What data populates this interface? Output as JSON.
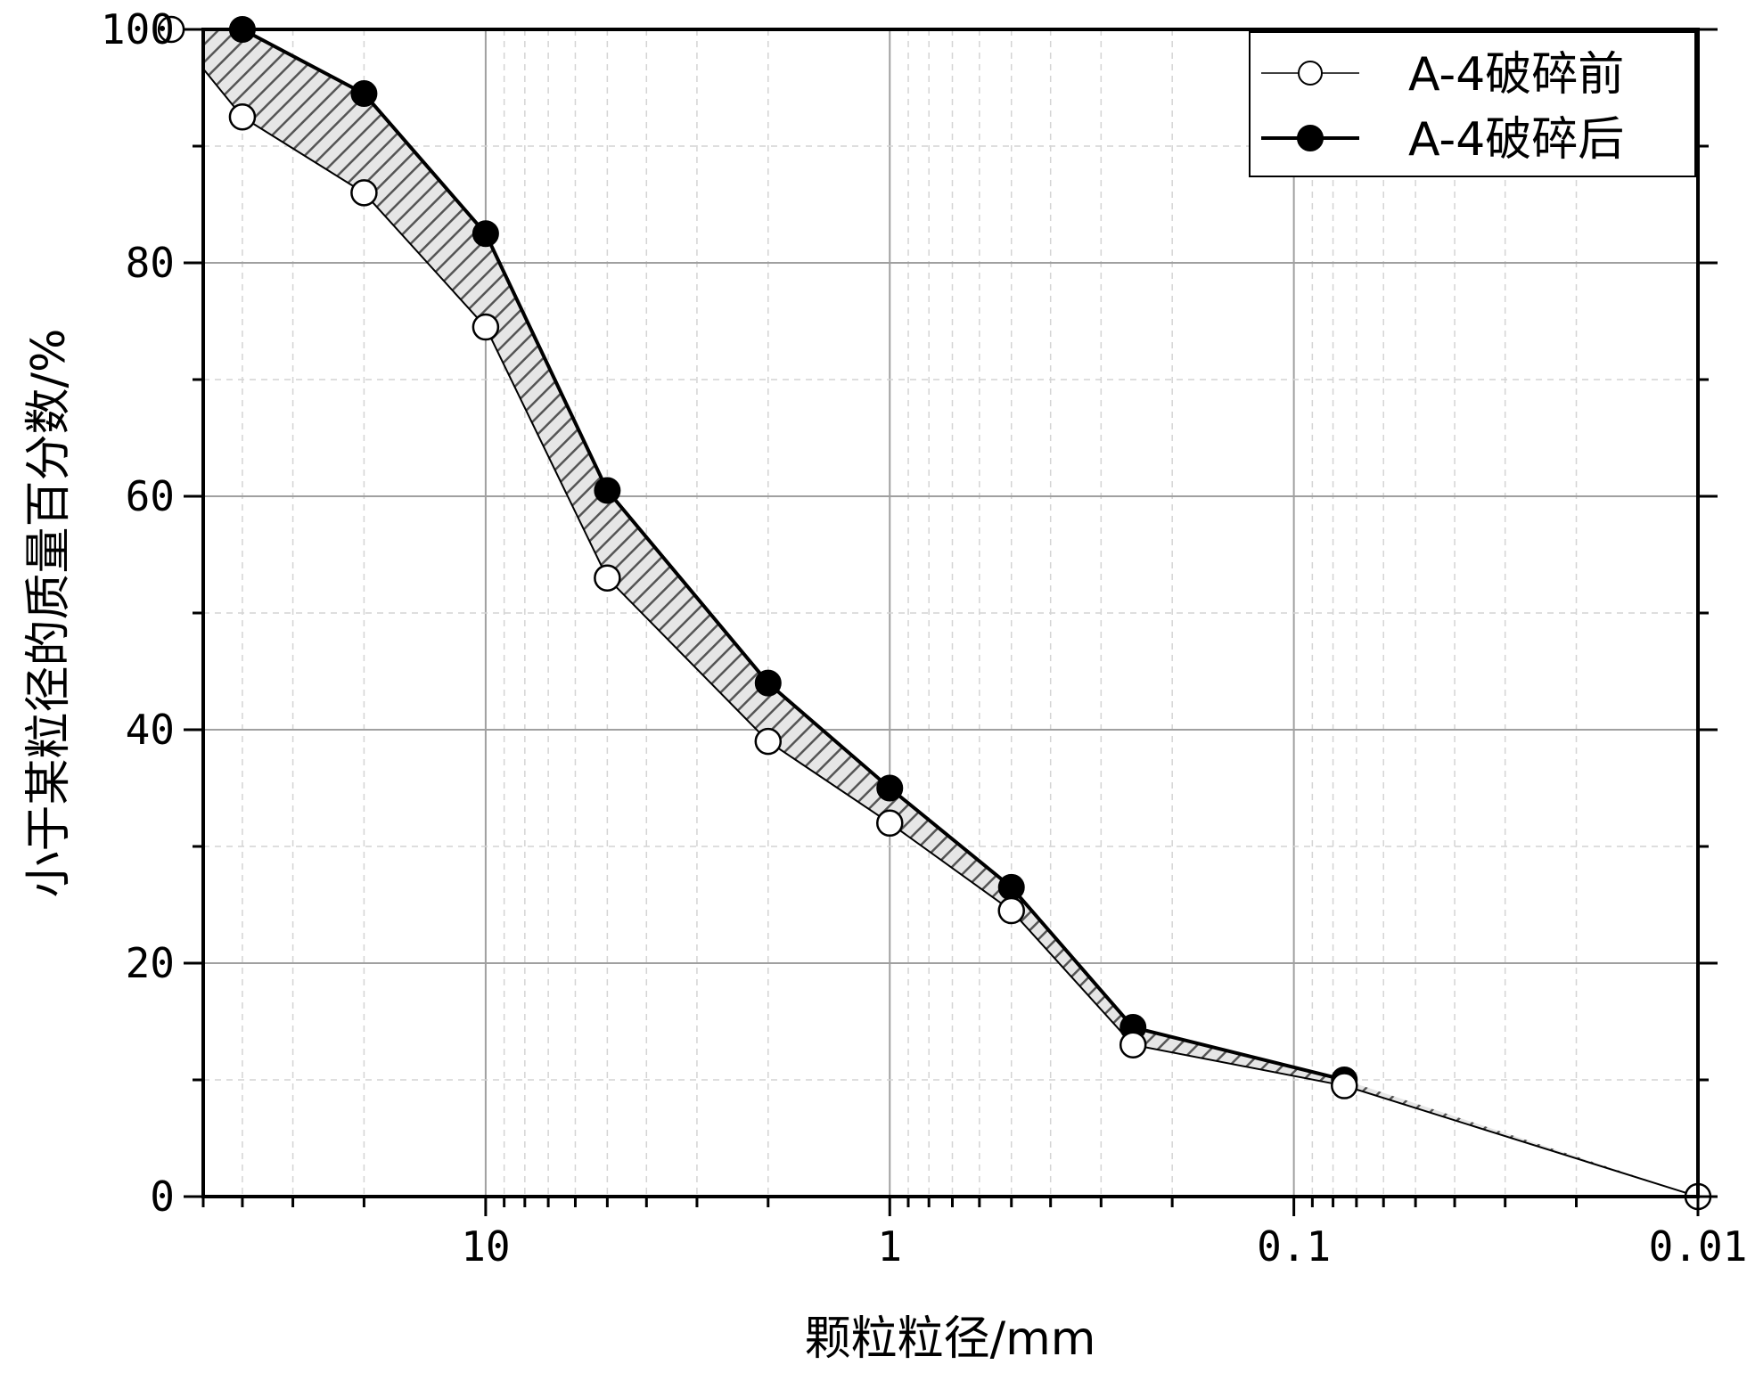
{
  "chart_data": {
    "type": "line",
    "xlabel": "颗粒粒径/mm",
    "ylabel": "小于某粒径的质量百分数/%",
    "x_scale": "log",
    "x_reversed": true,
    "xlim": [
      50,
      0.01
    ],
    "ylim": [
      0,
      100
    ],
    "x_ticks": [
      10,
      1,
      0.1,
      0.01
    ],
    "x_tick_labels": [
      "10",
      "1",
      "0.1",
      "0.01"
    ],
    "y_ticks": [
      0,
      20,
      40,
      60,
      80,
      100
    ],
    "y_tick_labels": [
      "0",
      "20",
      "40",
      "60",
      "80",
      "100"
    ],
    "grid": true,
    "legend_position": "top-right",
    "fill_between_series": "hatched",
    "series": [
      {
        "name": "A-4破碎前",
        "marker": "open-circle",
        "line": "thin",
        "color": "#000000",
        "x": [
          60,
          40,
          20,
          10,
          5,
          2,
          1,
          0.5,
          0.25,
          0.075,
          0.01
        ],
        "y": [
          100,
          92.5,
          86,
          74.5,
          53,
          39,
          32,
          24.5,
          13,
          9.5,
          0
        ]
      },
      {
        "name": "A-4破碎后",
        "marker": "filled-circle",
        "line": "thick",
        "color": "#000000",
        "x": [
          60,
          40,
          20,
          10,
          5,
          2,
          1,
          0.5,
          0.25,
          0.075
        ],
        "y": [
          100,
          100,
          94.5,
          82.5,
          60.5,
          44,
          35,
          26.5,
          14.5,
          10
        ]
      }
    ]
  }
}
